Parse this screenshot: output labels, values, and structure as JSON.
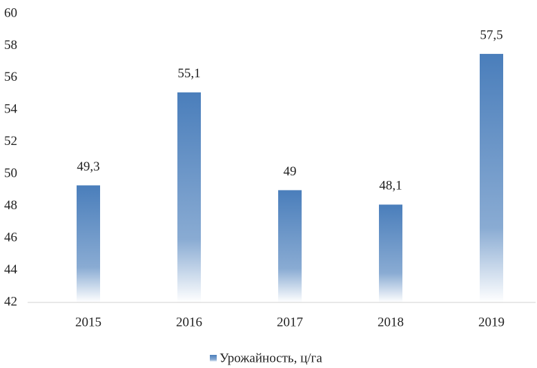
{
  "chart_data": {
    "type": "bar",
    "categories": [
      "2015",
      "2016",
      "2017",
      "2018",
      "2019"
    ],
    "series": [
      {
        "name": "Урожайность, ц/га",
        "color": "#4a7ebb",
        "values": [
          49.3,
          55.1,
          49,
          48.1,
          57.5
        ],
        "value_labels": [
          "49,3",
          "55,1",
          "49",
          "48,1",
          "57,5"
        ]
      }
    ],
    "ylim": [
      42,
      60
    ],
    "yticks": [
      42,
      44,
      46,
      48,
      50,
      52,
      54,
      56,
      58,
      60
    ],
    "grid": false,
    "legend": "bottom"
  }
}
